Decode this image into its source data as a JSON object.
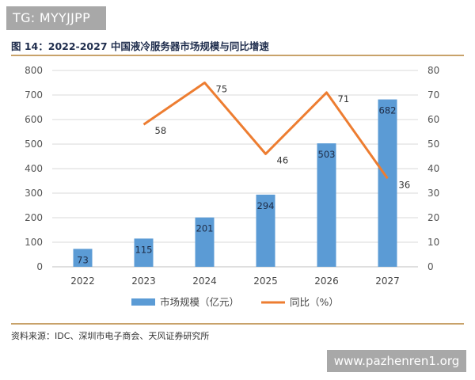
{
  "watermarks": {
    "top": "TG: MYYJJPP",
    "bottom": "www.pazhenren1.org"
  },
  "figure": {
    "title": "图 14：2022-2027 中国液冷服务器市场规模与同比增速",
    "source": "资料来源：IDC、深圳市电子商会、天风证券研究所"
  },
  "colors": {
    "bar": "#5b9bd5",
    "line": "#ed7d31",
    "rule": "#c8a26a"
  },
  "chart_data": {
    "type": "bar",
    "categories": [
      "2022",
      "2023",
      "2024",
      "2025",
      "2026",
      "2027"
    ],
    "series": [
      {
        "name": "市场规模（亿元）",
        "type": "bar",
        "axis": "left",
        "values": [
          73,
          115,
          201,
          294,
          503,
          682
        ]
      },
      {
        "name": "同比（%）",
        "type": "line",
        "axis": "right",
        "values": [
          null,
          58,
          75,
          46,
          71,
          36
        ]
      }
    ],
    "y_left": {
      "min": 0,
      "max": 800,
      "ticks": [
        "0",
        "100",
        "200",
        "300",
        "400",
        "500",
        "600",
        "700",
        "800"
      ]
    },
    "y_right": {
      "min": 0,
      "max": 80,
      "ticks": [
        "0",
        "10",
        "20",
        "30",
        "40",
        "50",
        "60",
        "70",
        "80"
      ]
    },
    "grid": true,
    "legend_position": "bottom"
  }
}
